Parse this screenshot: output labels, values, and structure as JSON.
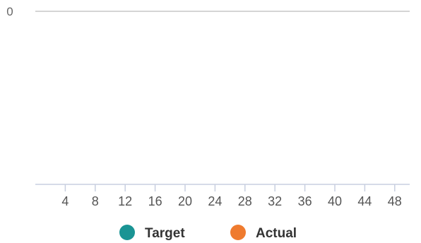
{
  "chart_data": {
    "type": "line",
    "title": "",
    "xlabel": "",
    "ylabel": "",
    "y_ticks": [
      "0"
    ],
    "x_ticks": [
      4,
      8,
      12,
      16,
      20,
      24,
      28,
      32,
      36,
      40,
      44,
      48
    ],
    "xlim": [
      0,
      50
    ],
    "grid": true,
    "legend_position": "bottom",
    "series": [
      {
        "name": "Target",
        "color": "#1a9494",
        "values": []
      },
      {
        "name": "Actual",
        "color": "#ef7b2f",
        "values": []
      }
    ],
    "colors": {
      "gridline": "#d5d5d5",
      "axis": "#c8cfe0",
      "tick": "#c8cfe0"
    }
  }
}
